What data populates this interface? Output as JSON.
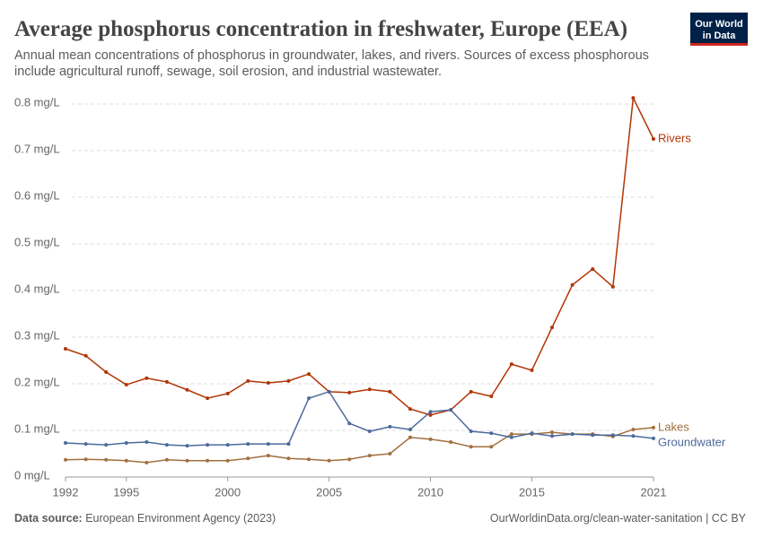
{
  "chart_data": {
    "type": "line",
    "title": "Average phosphorus concentration in freshwater, Europe (EEA)",
    "subtitle": [
      "Annual mean concentrations of phosphorus in groundwater, lakes, and rivers. Sources of excess phosphorous",
      "include agricultural runoff, sewage, soil erosion, and industrial wastewater."
    ],
    "x": [
      1992,
      1993,
      1994,
      1995,
      1996,
      1997,
      1998,
      1999,
      2000,
      2001,
      2002,
      2003,
      2004,
      2005,
      2006,
      2007,
      2008,
      2009,
      2010,
      2011,
      2012,
      2013,
      2014,
      2015,
      2016,
      2017,
      2018,
      2019,
      2020,
      2021
    ],
    "series": [
      {
        "name": "Rivers",
        "color": "#b13507",
        "values": [
          0.275,
          0.26,
          0.225,
          0.198,
          0.212,
          0.204,
          0.187,
          0.169,
          0.179,
          0.206,
          0.202,
          0.206,
          0.221,
          0.183,
          0.181,
          0.188,
          0.183,
          0.146,
          0.133,
          0.144,
          0.183,
          0.173,
          0.242,
          0.229,
          0.321,
          0.412,
          0.446,
          0.408,
          0.813,
          0.725
        ]
      },
      {
        "name": "Lakes",
        "color": "#a2703f",
        "values": [
          0.037,
          0.038,
          0.037,
          0.035,
          0.031,
          0.037,
          0.035,
          0.035,
          0.035,
          0.04,
          0.046,
          0.04,
          0.038,
          0.035,
          0.038,
          0.046,
          0.05,
          0.085,
          0.081,
          0.075,
          0.065,
          0.065,
          0.092,
          0.092,
          0.096,
          0.092,
          0.092,
          0.087,
          0.102,
          0.106
        ]
      },
      {
        "name": "Groundwater",
        "color": "#4c6a9c",
        "values": [
          0.073,
          0.071,
          0.069,
          0.073,
          0.075,
          0.069,
          0.067,
          0.069,
          0.069,
          0.071,
          0.071,
          0.071,
          0.169,
          0.183,
          0.115,
          0.098,
          0.108,
          0.102,
          0.14,
          0.144,
          0.098,
          0.094,
          0.085,
          0.094,
          0.088,
          0.092,
          0.09,
          0.09,
          0.088,
          0.083
        ]
      }
    ],
    "xlim": [
      1992,
      2021
    ],
    "xticks": [
      1992,
      1995,
      2000,
      2005,
      2010,
      2015,
      2021
    ],
    "ylim": [
      0,
      0.8
    ],
    "yticks": [
      {
        "value": 0,
        "label": "0 mg/L"
      },
      {
        "value": 0.1,
        "label": "0.1 mg/L"
      },
      {
        "value": 0.2,
        "label": "0.2 mg/L"
      },
      {
        "value": 0.3,
        "label": "0.3 mg/L"
      },
      {
        "value": 0.4,
        "label": "0.4 mg/L"
      },
      {
        "value": 0.5,
        "label": "0.5 mg/L"
      },
      {
        "value": 0.6,
        "label": "0.6 mg/L"
      },
      {
        "value": 0.7,
        "label": "0.7 mg/L"
      },
      {
        "value": 0.8,
        "label": "0.8 mg/L"
      }
    ],
    "grid": true
  },
  "logo": [
    "Our World",
    "in Data"
  ],
  "footer": {
    "source_label": "Data source:",
    "source": "European Environment Agency (2023)",
    "url": "OurWorldinData.org/clean-water-sanitation | CC BY"
  }
}
